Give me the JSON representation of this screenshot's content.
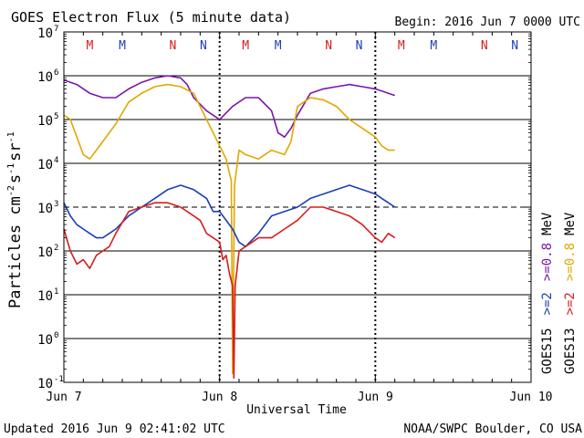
{
  "chart_data": {
    "type": "line",
    "title": "GOES Electron Flux (5 minute data)",
    "begin_label": "Begin: 2016 Jun 7 0000 UTC",
    "xlabel": "Universal Time",
    "ylabel_main": "Particles cm",
    "ylabel_sup1": "-2",
    "ylabel_mid": "s",
    "ylabel_sup2": "-1",
    "ylabel_mid2": "sr",
    "ylabel_sup3": "-1",
    "updated_text": "Updated 2016 Jun  9 02:41:02 UTC",
    "credit_text": "NOAA/SWPC Boulder, CO USA",
    "x_ticks": [
      {
        "t": 0,
        "label": "Jun 7"
      },
      {
        "t": 24,
        "label": "Jun 8"
      },
      {
        "t": 48,
        "label": "Jun 9"
      },
      {
        "t": 72,
        "label": "Jun 10"
      }
    ],
    "xlim": [
      0,
      72
    ],
    "ylim_log10": [
      -1,
      7
    ],
    "y_ticks": [
      {
        "exp": 7,
        "base": "10",
        "sup": "7"
      },
      {
        "exp": 6,
        "base": "10",
        "sup": "6"
      },
      {
        "exp": 5,
        "base": "10",
        "sup": "5"
      },
      {
        "exp": 4,
        "base": "10",
        "sup": "4"
      },
      {
        "exp": 3,
        "base": "10",
        "sup": "3"
      },
      {
        "exp": 2,
        "base": "10",
        "sup": "2"
      },
      {
        "exp": 1,
        "base": "10",
        "sup": "1"
      },
      {
        "exp": 0,
        "base": "10",
        "sup": "0"
      },
      {
        "exp": -1,
        "base": "10",
        "sup": "-1"
      }
    ],
    "solid_grid_log10": [
      6,
      5,
      4,
      2,
      1,
      0
    ],
    "dashed_grid_log10": [
      3
    ],
    "day_boundaries": [
      24,
      48
    ],
    "mn_markers": [
      {
        "t": 4,
        "label": "M",
        "color": "#d61d1d"
      },
      {
        "t": 9,
        "label": "M",
        "color": "#1a3fb5"
      },
      {
        "t": 16.8,
        "label": "N",
        "color": "#d61d1d"
      },
      {
        "t": 21.5,
        "label": "N",
        "color": "#1a3fb5"
      },
      {
        "t": 28,
        "label": "M",
        "color": "#d61d1d"
      },
      {
        "t": 33,
        "label": "M",
        "color": "#1a3fb5"
      },
      {
        "t": 40.8,
        "label": "N",
        "color": "#d61d1d"
      },
      {
        "t": 45.5,
        "label": "N",
        "color": "#1a3fb5"
      },
      {
        "t": 52,
        "label": "M",
        "color": "#d61d1d"
      },
      {
        "t": 57,
        "label": "M",
        "color": "#1a3fb5"
      },
      {
        "t": 64.8,
        "label": "N",
        "color": "#d61d1d"
      },
      {
        "t": 69.5,
        "label": "N",
        "color": "#1a3fb5"
      }
    ],
    "legend": [
      {
        "sat": "GOES15",
        "threshold": ">=2",
        "purple_label": ">=0.8",
        "unit": "MeV",
        "color_a": "#1a3fb5",
        "color_b": "#7a17a8"
      },
      {
        "sat": "GOES13",
        "threshold": ">=2",
        "yellow_label": ">=0.8",
        "unit": "MeV",
        "color_a": "#d61d1d",
        "color_b": "#e0a800"
      }
    ],
    "series": [
      {
        "name": "GOES15 >=0.8 MeV",
        "color": "#7a17a8",
        "t": [
          0,
          2,
          4,
          6,
          8,
          10,
          12,
          14,
          16,
          18,
          19,
          20,
          22,
          24,
          26,
          28,
          30,
          32,
          33,
          34,
          35,
          36,
          38,
          40,
          42,
          44,
          46,
          48,
          49,
          50,
          51
        ],
        "log10": [
          5.9,
          5.8,
          5.6,
          5.5,
          5.5,
          5.7,
          5.85,
          5.95,
          6.0,
          5.95,
          5.8,
          5.5,
          5.2,
          5.0,
          5.3,
          5.5,
          5.5,
          5.2,
          4.7,
          4.6,
          4.8,
          5.1,
          5.6,
          5.7,
          5.75,
          5.8,
          5.75,
          5.7,
          5.65,
          5.6,
          5.55
        ]
      },
      {
        "name": "GOES13 >=0.8 MeV",
        "color": "#e0a800",
        "t": [
          0,
          1,
          2,
          3,
          4,
          5,
          6,
          8,
          10,
          12,
          14,
          16,
          18,
          20,
          22,
          24,
          25,
          25.8,
          26,
          26.3,
          27,
          28,
          30,
          32,
          34,
          35,
          36,
          38,
          40,
          42,
          44,
          46,
          48,
          49,
          50,
          51
        ],
        "log10": [
          5.1,
          5.0,
          4.6,
          4.2,
          4.1,
          4.3,
          4.5,
          4.9,
          5.4,
          5.6,
          5.75,
          5.8,
          5.75,
          5.6,
          5.0,
          4.4,
          4.1,
          3.6,
          -0.8,
          3.5,
          4.3,
          4.2,
          4.1,
          4.3,
          4.2,
          4.5,
          5.3,
          5.5,
          5.45,
          5.3,
          5.0,
          4.8,
          4.6,
          4.4,
          4.3,
          4.3
        ]
      },
      {
        "name": "GOES15 >=2 MeV",
        "color": "#1a3fb5",
        "t": [
          0,
          1,
          2,
          3,
          4,
          5,
          6,
          7,
          8,
          10,
          12,
          14,
          16,
          18,
          20,
          22,
          23,
          24,
          25,
          26,
          27,
          28,
          30,
          32,
          34,
          36,
          38,
          40,
          42,
          44,
          46,
          48,
          49,
          50,
          51
        ],
        "log10": [
          3.1,
          2.8,
          2.6,
          2.5,
          2.4,
          2.3,
          2.3,
          2.4,
          2.5,
          2.8,
          3.0,
          3.2,
          3.4,
          3.5,
          3.4,
          3.2,
          2.9,
          2.9,
          2.7,
          2.5,
          2.2,
          2.1,
          2.4,
          2.8,
          2.9,
          3.0,
          3.2,
          3.3,
          3.4,
          3.5,
          3.4,
          3.3,
          3.2,
          3.1,
          3.0
        ]
      },
      {
        "name": "GOES13 >=2 MeV",
        "color": "#d61d1d",
        "t": [
          0,
          1,
          2,
          3,
          4,
          5,
          6,
          7,
          8,
          10,
          12,
          14,
          16,
          18,
          20,
          21,
          22,
          23,
          24,
          24.5,
          25,
          25.5,
          26,
          26.2,
          26.4,
          27,
          28,
          29,
          30,
          32,
          34,
          36,
          38,
          40,
          42,
          44,
          46,
          48,
          49,
          50,
          51
        ],
        "log10": [
          2.5,
          2.0,
          1.7,
          1.8,
          1.6,
          1.9,
          2.0,
          2.1,
          2.4,
          2.9,
          3.0,
          3.1,
          3.1,
          3.0,
          2.8,
          2.7,
          2.4,
          2.3,
          2.2,
          1.8,
          1.9,
          1.5,
          1.2,
          -0.9,
          1.2,
          2.0,
          2.1,
          2.2,
          2.3,
          2.3,
          2.5,
          2.7,
          3.0,
          3.0,
          2.9,
          2.8,
          2.6,
          2.3,
          2.2,
          2.4,
          2.3
        ]
      }
    ]
  }
}
